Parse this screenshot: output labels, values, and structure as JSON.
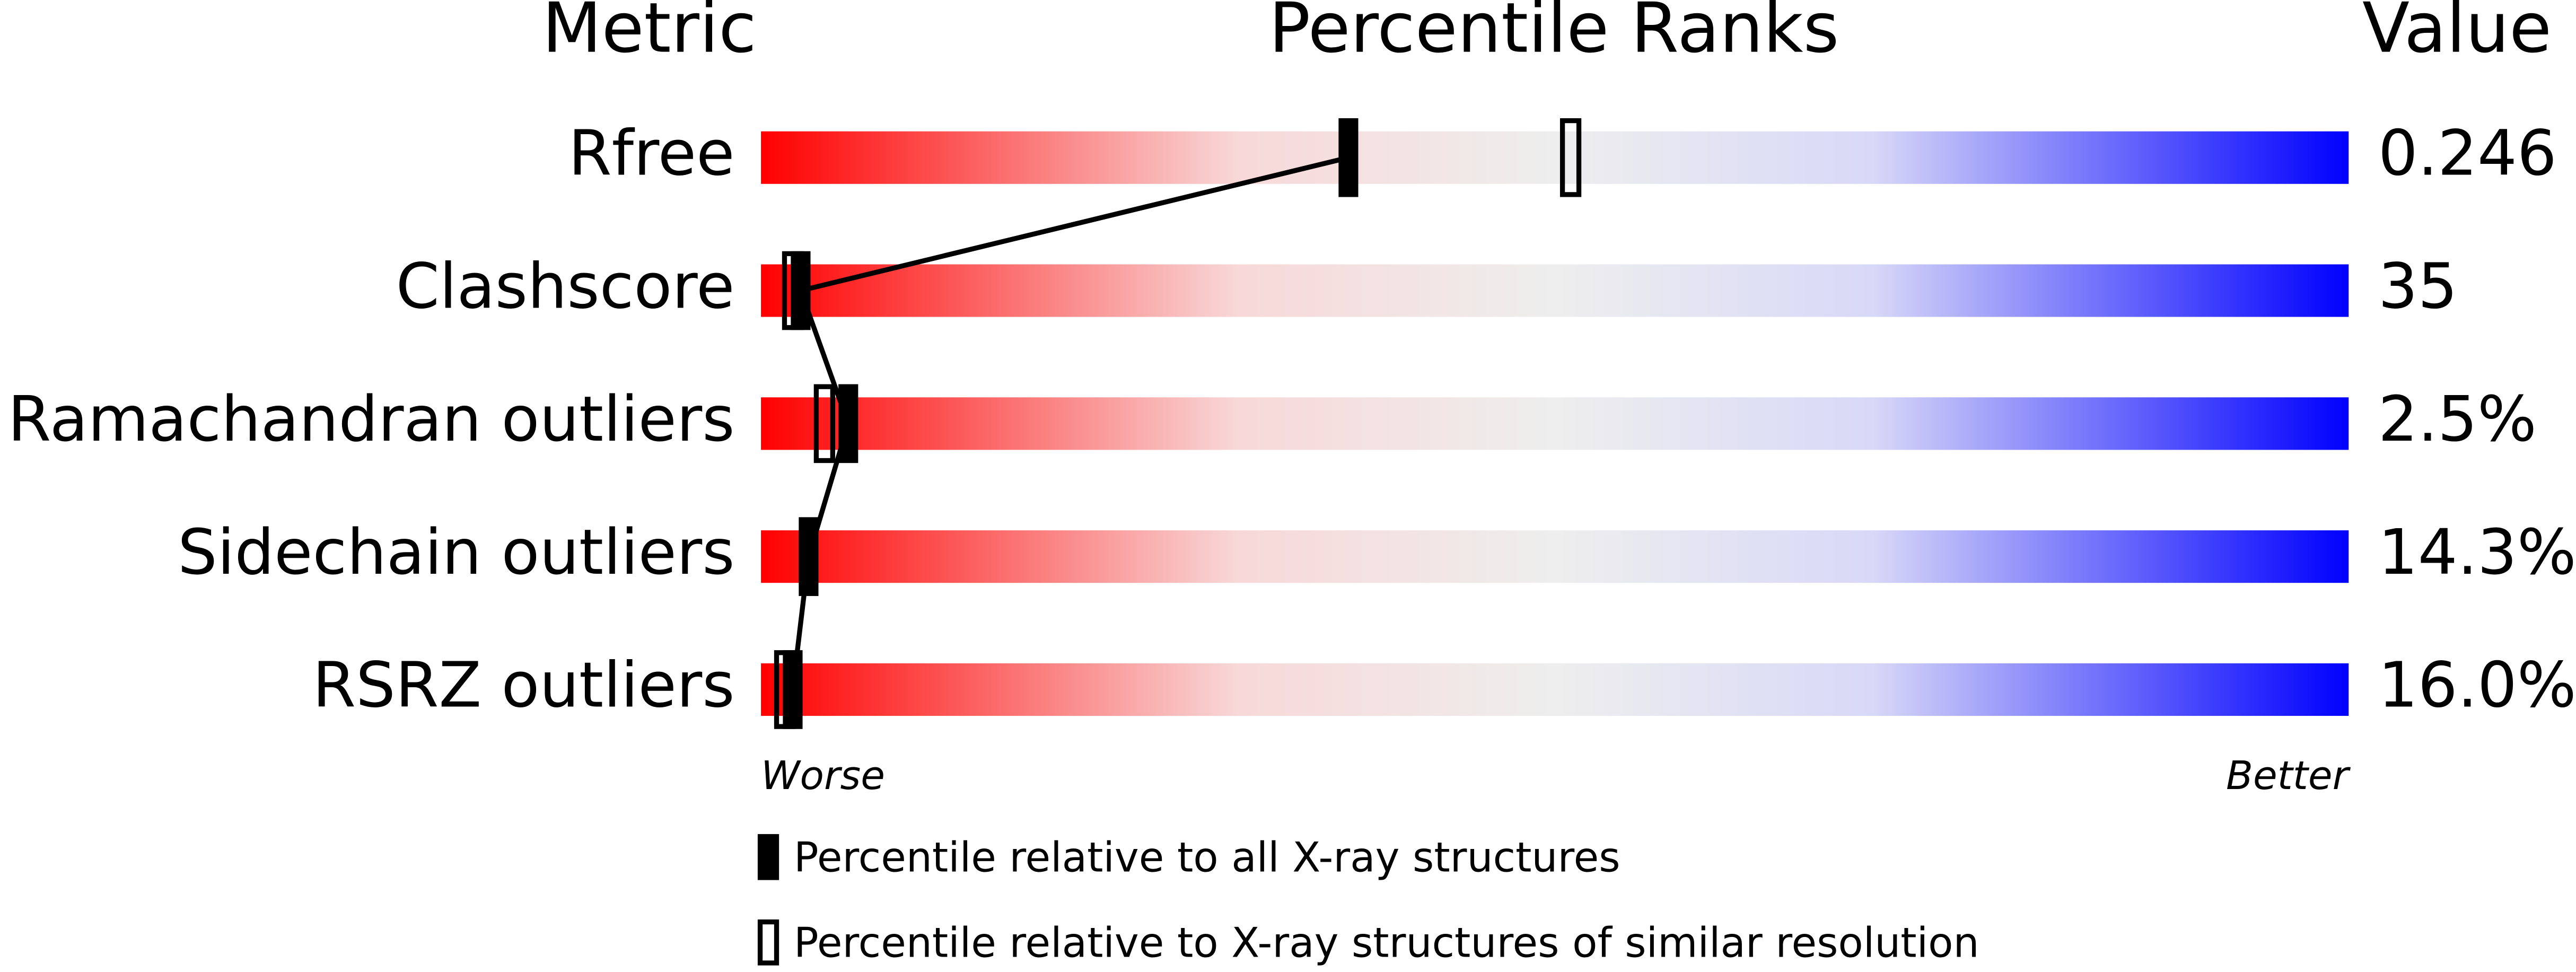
{
  "chart_data": {
    "type": "percentile-slider",
    "headers": {
      "metric": "Metric",
      "ranks": "Percentile Ranks",
      "value": "Value"
    },
    "categories": [
      "Rfree",
      "Clashscore",
      "Ramachandran outliers",
      "Sidechain outliers",
      "RSRZ outliers"
    ],
    "printed_values": [
      "0.246",
      "35",
      "2.5%",
      "14.3%",
      "16.0%"
    ],
    "xlim": [
      0,
      100
    ],
    "axis_labels": {
      "left": "Worse",
      "right": "Better"
    },
    "series": [
      {
        "name": "Percentile relative to all X-ray structures",
        "style": "filled",
        "color": "#000000",
        "values": [
          37,
          2.5,
          5.5,
          3,
          2
        ]
      },
      {
        "name": "Percentile relative to X-ray structures of similar resolution",
        "style": "open",
        "color": "#000000",
        "values": [
          51,
          2,
          4,
          null,
          1.5
        ]
      }
    ]
  }
}
